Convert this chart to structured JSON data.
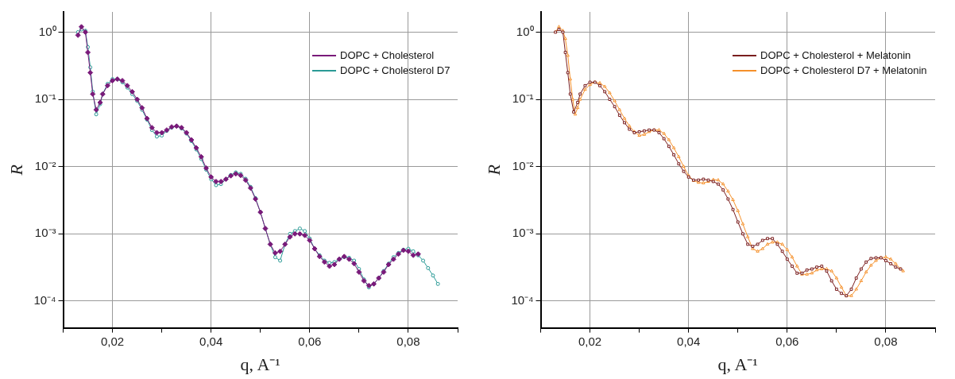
{
  "chart_data": [
    {
      "type": "line",
      "xlabel": "q, A⁻¹",
      "ylabel": "R",
      "log": "y",
      "grid": true,
      "legend": "top right",
      "line_style": "solid",
      "xlim": [
        0.01,
        0.09
      ],
      "ylim": [
        4e-05,
        2
      ],
      "xticks": [
        {
          "value": 0.01,
          "label": null
        },
        {
          "value": 0.02,
          "label": "0,02"
        },
        {
          "value": 0.03,
          "label": null
        },
        {
          "value": 0.04,
          "label": "0,04"
        },
        {
          "value": 0.05,
          "label": null
        },
        {
          "value": 0.06,
          "label": "0,06"
        },
        {
          "value": 0.07,
          "label": null
        },
        {
          "value": 0.08,
          "label": "0,08"
        },
        {
          "value": 0.09,
          "label": null
        }
      ],
      "yticks": [
        {
          "value": 0.0001,
          "label": "10⁻⁴"
        },
        {
          "value": 0.001,
          "label": "10⁻³"
        },
        {
          "value": 0.01,
          "label": "10⁻²"
        },
        {
          "value": 0.1,
          "label": "10⁻¹"
        },
        {
          "value": 1,
          "label": "10⁰"
        }
      ],
      "series": [
        {
          "name": "DOPC + Cholesterol",
          "color": "#7a1a7a",
          "marker": "diamond",
          "x": [
            0.013,
            0.0137,
            0.0145,
            0.015,
            0.0155,
            0.016,
            0.0167,
            0.0175,
            0.018,
            0.019,
            0.02,
            0.021,
            0.022,
            0.023,
            0.024,
            0.025,
            0.026,
            0.027,
            0.028,
            0.029,
            0.03,
            0.031,
            0.032,
            0.033,
            0.034,
            0.035,
            0.036,
            0.037,
            0.038,
            0.039,
            0.04,
            0.041,
            0.042,
            0.043,
            0.044,
            0.045,
            0.046,
            0.047,
            0.048,
            0.049,
            0.05,
            0.051,
            0.052,
            0.053,
            0.054,
            0.055,
            0.056,
            0.057,
            0.058,
            0.059,
            0.06,
            0.061,
            0.062,
            0.063,
            0.064,
            0.065,
            0.066,
            0.067,
            0.068,
            0.069,
            0.07,
            0.071,
            0.072,
            0.073,
            0.074,
            0.075,
            0.076,
            0.077,
            0.078,
            0.079,
            0.08,
            0.081,
            0.082
          ],
          "values": [
            0.9,
            1.2,
            1.0,
            0.5,
            0.25,
            0.12,
            0.07,
            0.09,
            0.12,
            0.16,
            0.19,
            0.2,
            0.19,
            0.16,
            0.13,
            0.1,
            0.075,
            0.052,
            0.038,
            0.032,
            0.032,
            0.035,
            0.039,
            0.04,
            0.038,
            0.032,
            0.025,
            0.019,
            0.014,
            0.0095,
            0.007,
            0.006,
            0.006,
            0.0065,
            0.0073,
            0.0078,
            0.0074,
            0.0063,
            0.0048,
            0.0033,
            0.0021,
            0.0012,
            0.0007,
            0.00052,
            0.00055,
            0.0007,
            0.0009,
            0.001,
            0.001,
            0.00095,
            0.0008,
            0.0006,
            0.00046,
            0.00038,
            0.00033,
            0.00035,
            0.00042,
            0.00046,
            0.00042,
            0.00036,
            0.00027,
            0.0002,
            0.00017,
            0.00018,
            0.00022,
            0.00027,
            0.00035,
            0.00042,
            0.0005,
            0.00057,
            0.00055,
            0.00048,
            0.0005
          ]
        },
        {
          "name": "DOPC + Cholesterol D7",
          "color": "#2a9a96",
          "marker": "circle",
          "x": [
            0.013,
            0.0137,
            0.0145,
            0.015,
            0.0155,
            0.016,
            0.0167,
            0.0175,
            0.018,
            0.019,
            0.02,
            0.021,
            0.022,
            0.023,
            0.024,
            0.025,
            0.026,
            0.027,
            0.028,
            0.029,
            0.03,
            0.031,
            0.032,
            0.033,
            0.034,
            0.035,
            0.036,
            0.037,
            0.038,
            0.039,
            0.04,
            0.041,
            0.042,
            0.043,
            0.044,
            0.045,
            0.046,
            0.047,
            0.048,
            0.049,
            0.05,
            0.051,
            0.052,
            0.053,
            0.054,
            0.055,
            0.056,
            0.057,
            0.058,
            0.059,
            0.06,
            0.061,
            0.062,
            0.063,
            0.064,
            0.065,
            0.066,
            0.067,
            0.068,
            0.069,
            0.07,
            0.071,
            0.072,
            0.073,
            0.074,
            0.075,
            0.076,
            0.077,
            0.078,
            0.079,
            0.08,
            0.081,
            0.082,
            0.083,
            0.084,
            0.085,
            0.086
          ],
          "values": [
            1.0,
            1.1,
            1.05,
            0.6,
            0.3,
            0.13,
            0.06,
            0.085,
            0.12,
            0.17,
            0.2,
            0.2,
            0.18,
            0.15,
            0.12,
            0.095,
            0.07,
            0.05,
            0.035,
            0.028,
            0.029,
            0.034,
            0.038,
            0.04,
            0.037,
            0.031,
            0.024,
            0.018,
            0.013,
            0.009,
            0.0065,
            0.0053,
            0.0055,
            0.0065,
            0.0075,
            0.0082,
            0.0078,
            0.0066,
            0.005,
            0.0034,
            0.0021,
            0.0012,
            0.0007,
            0.00045,
            0.0004,
            0.0007,
            0.001,
            0.0011,
            0.0012,
            0.0011,
            0.00085,
            0.0006,
            0.00048,
            0.0004,
            0.00037,
            0.00038,
            0.00042,
            0.00045,
            0.00044,
            0.0004,
            0.0003,
            0.00021,
            0.00016,
            0.00018,
            0.00022,
            0.00028,
            0.00036,
            0.00045,
            0.00052,
            0.00058,
            0.0006,
            0.00055,
            0.00048,
            0.0004,
            0.00031,
            0.00024,
            0.00018
          ]
        }
      ]
    },
    {
      "type": "line",
      "xlabel": "q, A⁻¹",
      "ylabel": "R",
      "log": "y",
      "grid": true,
      "legend": "top right",
      "line_style": "solid",
      "xlim": [
        0.01,
        0.09
      ],
      "ylim": [
        4e-05,
        2
      ],
      "xticks": [
        {
          "value": 0.01,
          "label": null
        },
        {
          "value": 0.02,
          "label": "0,02"
        },
        {
          "value": 0.03,
          "label": null
        },
        {
          "value": 0.04,
          "label": "0,04"
        },
        {
          "value": 0.05,
          "label": null
        },
        {
          "value": 0.06,
          "label": "0,06"
        },
        {
          "value": 0.07,
          "label": null
        },
        {
          "value": 0.08,
          "label": "0,08"
        },
        {
          "value": 0.09,
          "label": null
        }
      ],
      "yticks": [
        {
          "value": 0.0001,
          "label": "10⁻⁴"
        },
        {
          "value": 0.001,
          "label": "10⁻³"
        },
        {
          "value": 0.01,
          "label": "10⁻²"
        },
        {
          "value": 0.1,
          "label": "10⁻¹"
        },
        {
          "value": 1,
          "label": "10⁰"
        }
      ],
      "series": [
        {
          "name": "DOPC + Cholesterol + Melatonin",
          "color": "#7a1e1e",
          "marker": "square",
          "x": [
            0.013,
            0.0137,
            0.0145,
            0.015,
            0.0155,
            0.016,
            0.0167,
            0.0175,
            0.018,
            0.019,
            0.02,
            0.021,
            0.022,
            0.023,
            0.024,
            0.025,
            0.026,
            0.027,
            0.028,
            0.029,
            0.03,
            0.031,
            0.032,
            0.033,
            0.034,
            0.035,
            0.036,
            0.037,
            0.038,
            0.039,
            0.04,
            0.041,
            0.042,
            0.043,
            0.044,
            0.045,
            0.046,
            0.047,
            0.048,
            0.049,
            0.05,
            0.051,
            0.052,
            0.053,
            0.054,
            0.055,
            0.056,
            0.057,
            0.058,
            0.059,
            0.06,
            0.061,
            0.062,
            0.063,
            0.064,
            0.065,
            0.066,
            0.067,
            0.068,
            0.069,
            0.07,
            0.071,
            0.072,
            0.073,
            0.074,
            0.075,
            0.076,
            0.077,
            0.078,
            0.079,
            0.08,
            0.081,
            0.082,
            0.083
          ],
          "values": [
            1.0,
            1.1,
            1.0,
            0.5,
            0.25,
            0.12,
            0.065,
            0.09,
            0.12,
            0.16,
            0.18,
            0.18,
            0.16,
            0.13,
            0.1,
            0.078,
            0.058,
            0.045,
            0.036,
            0.032,
            0.033,
            0.034,
            0.035,
            0.035,
            0.032,
            0.026,
            0.02,
            0.015,
            0.011,
            0.0085,
            0.007,
            0.0063,
            0.0063,
            0.0065,
            0.0063,
            0.006,
            0.0055,
            0.0045,
            0.0033,
            0.0023,
            0.0015,
            0.001,
            0.0007,
            0.00065,
            0.0007,
            0.0008,
            0.00085,
            0.00085,
            0.0007,
            0.00055,
            0.00042,
            0.00033,
            0.00026,
            0.00026,
            0.00029,
            0.0003,
            0.00032,
            0.00033,
            0.00028,
            0.0002,
            0.00015,
            0.00013,
            0.00012,
            0.00015,
            0.00022,
            0.0003,
            0.00038,
            0.00043,
            0.00044,
            0.00044,
            0.0004,
            0.00036,
            0.00032,
            0.0003
          ]
        },
        {
          "name": "DOPC + Cholesterol D7 + Melatonin",
          "color": "#f5902a",
          "marker": "triangle",
          "x": [
            0.013,
            0.0137,
            0.0145,
            0.015,
            0.0155,
            0.016,
            0.0165,
            0.017,
            0.0175,
            0.018,
            0.019,
            0.02,
            0.021,
            0.022,
            0.023,
            0.024,
            0.025,
            0.026,
            0.027,
            0.028,
            0.029,
            0.03,
            0.031,
            0.032,
            0.033,
            0.034,
            0.035,
            0.036,
            0.037,
            0.038,
            0.039,
            0.04,
            0.041,
            0.042,
            0.043,
            0.044,
            0.045,
            0.046,
            0.047,
            0.048,
            0.049,
            0.05,
            0.051,
            0.052,
            0.053,
            0.054,
            0.055,
            0.056,
            0.057,
            0.058,
            0.059,
            0.06,
            0.061,
            0.062,
            0.063,
            0.064,
            0.065,
            0.066,
            0.067,
            0.068,
            0.069,
            0.07,
            0.071,
            0.072,
            0.073,
            0.074,
            0.075,
            0.076,
            0.077,
            0.078,
            0.079,
            0.08,
            0.081,
            0.082,
            0.083,
            0.0835
          ],
          "values": [
            1.0,
            1.2,
            1.05,
            0.8,
            0.45,
            0.2,
            0.1,
            0.06,
            0.075,
            0.1,
            0.14,
            0.165,
            0.18,
            0.175,
            0.155,
            0.125,
            0.095,
            0.07,
            0.052,
            0.04,
            0.033,
            0.029,
            0.03,
            0.033,
            0.035,
            0.035,
            0.031,
            0.025,
            0.019,
            0.014,
            0.01,
            0.0073,
            0.0062,
            0.0058,
            0.0057,
            0.006,
            0.0064,
            0.0063,
            0.0055,
            0.0043,
            0.0032,
            0.0022,
            0.0014,
            0.0009,
            0.0006,
            0.00055,
            0.0006,
            0.0007,
            0.00075,
            0.00075,
            0.0007,
            0.00058,
            0.00045,
            0.00033,
            0.00025,
            0.00025,
            0.00026,
            0.00029,
            0.0003,
            0.0003,
            0.00028,
            0.00022,
            0.00016,
            0.00012,
            0.00012,
            0.00015,
            0.0002,
            0.00027,
            0.00034,
            0.0004,
            0.00044,
            0.00045,
            0.00042,
            0.00036,
            0.0003,
            0.00028
          ]
        }
      ]
    }
  ]
}
